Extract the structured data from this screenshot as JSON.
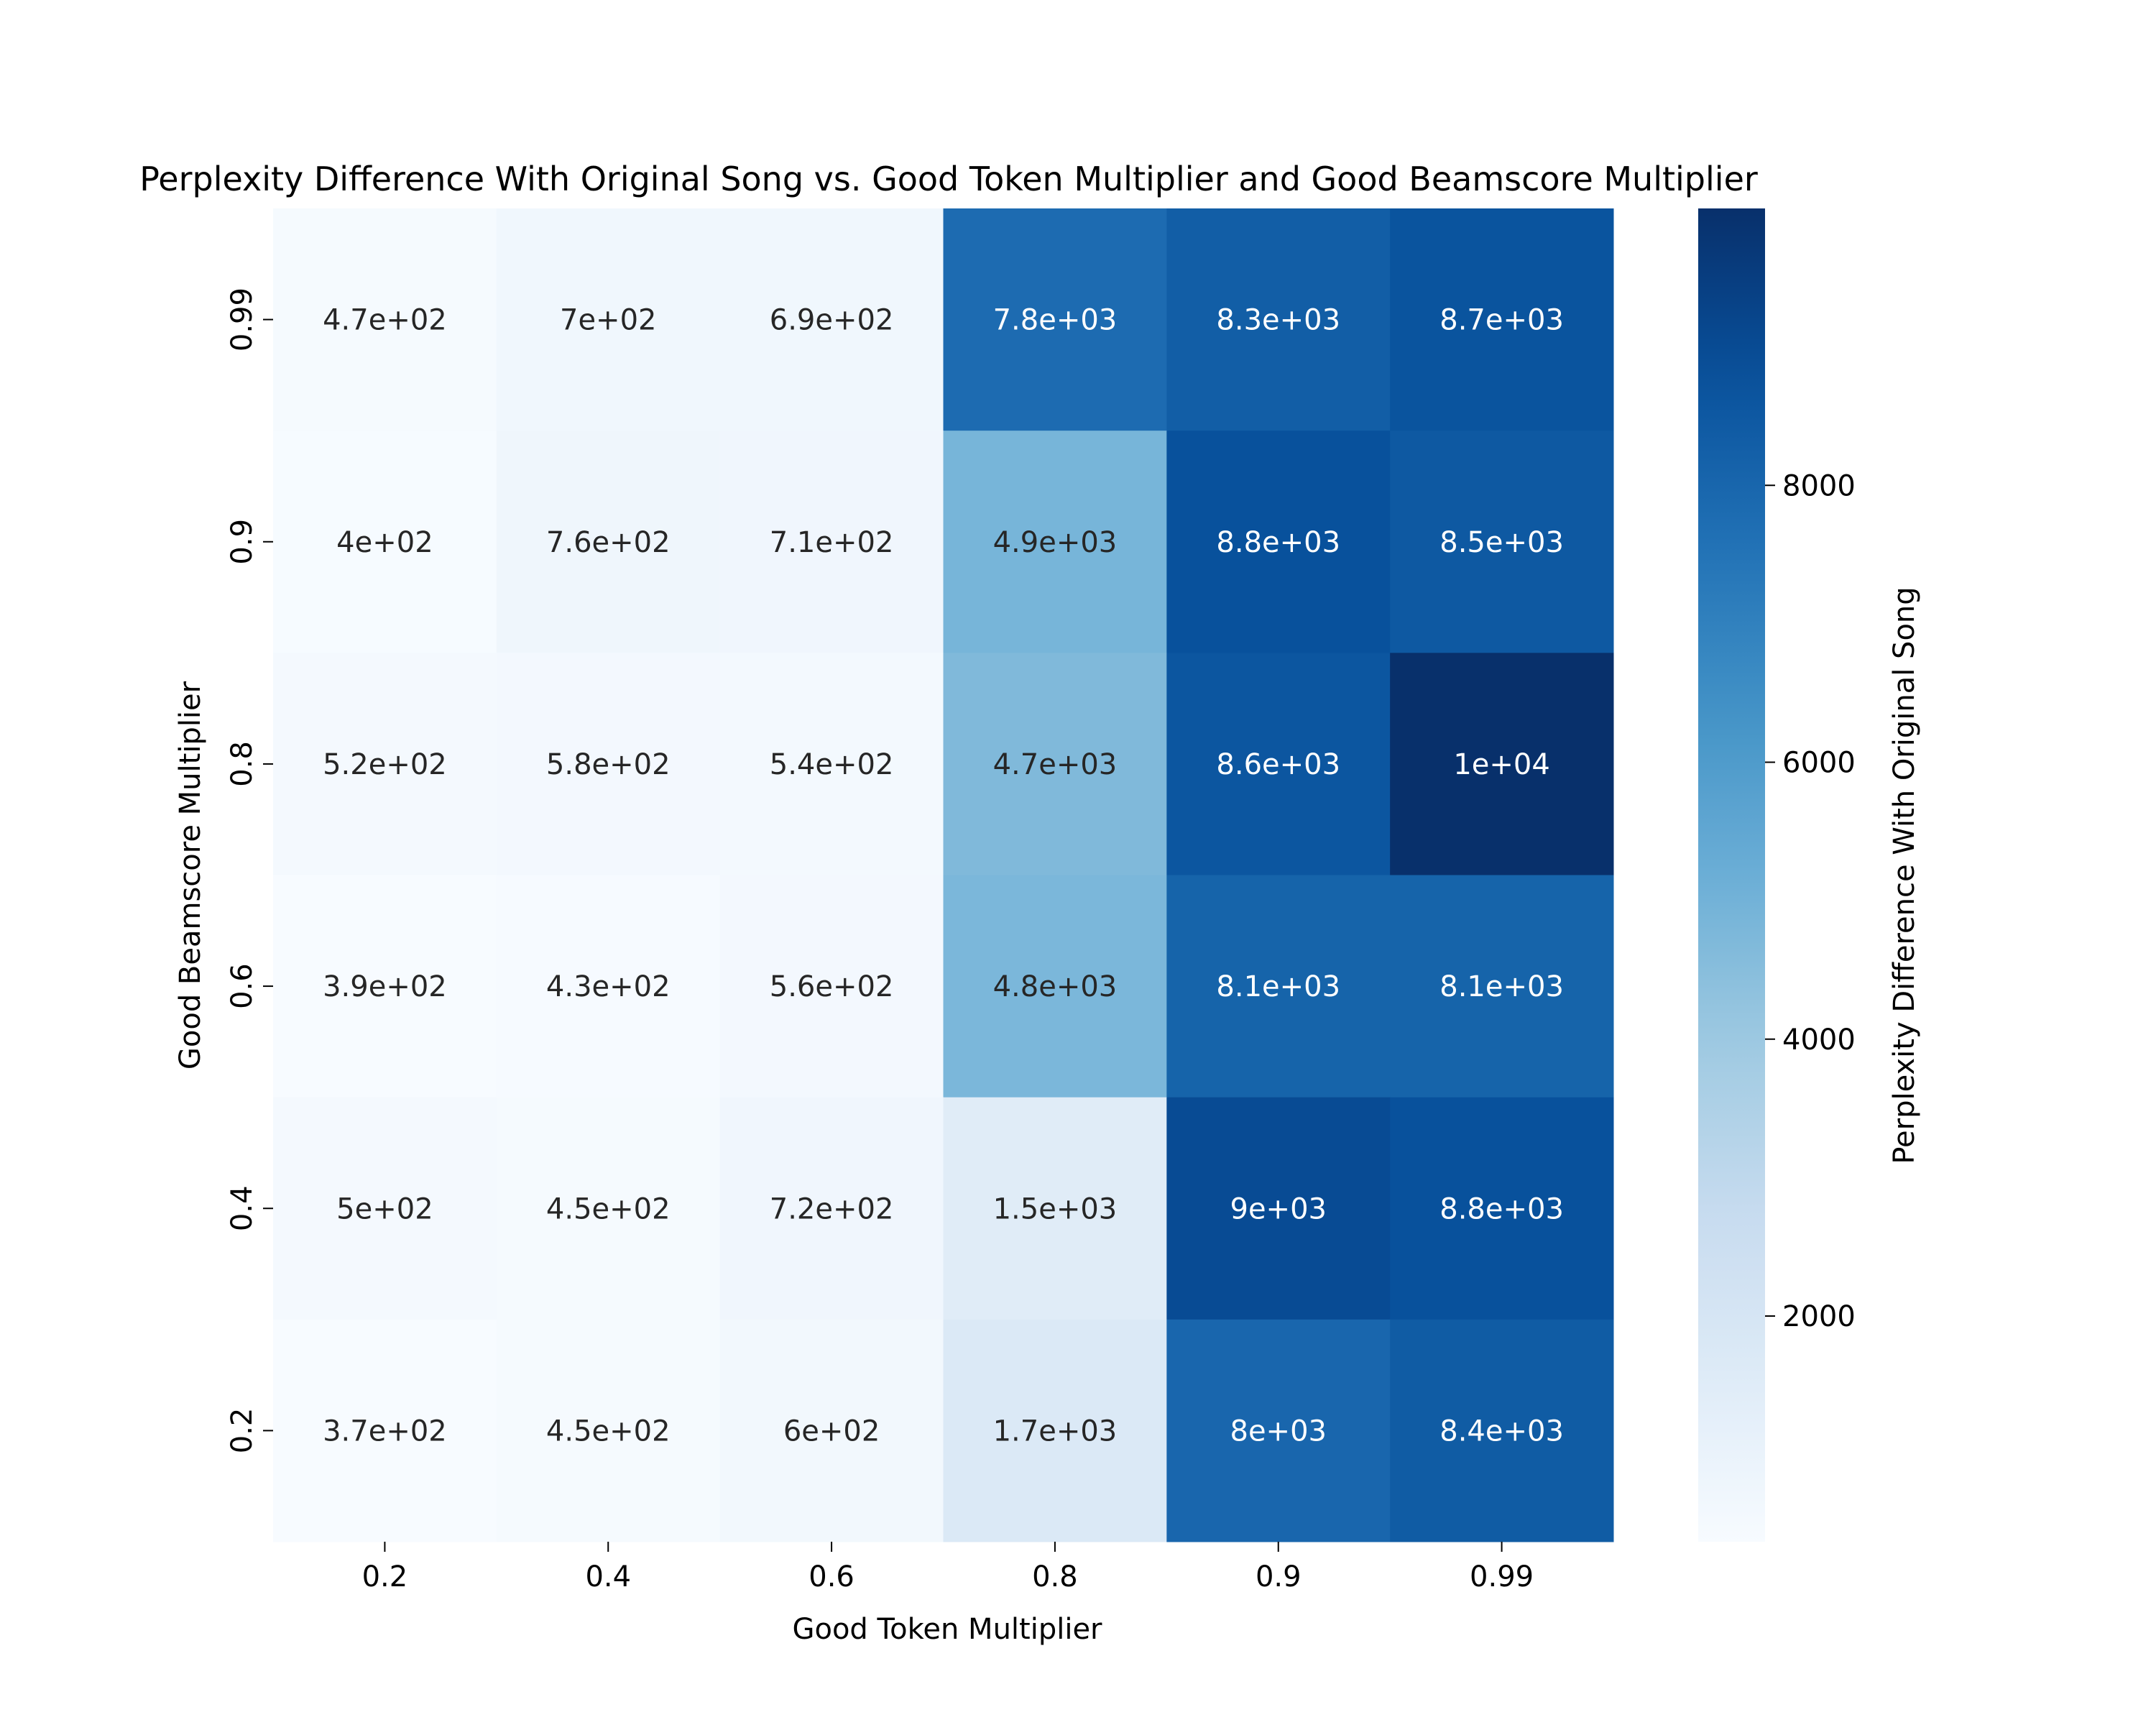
{
  "chart_data": {
    "type": "heatmap",
    "title": "Perplexity Difference With Original Song vs. Good Token Multiplier and Good Beamscore Multiplier",
    "xlabel": "Good Token Multiplier",
    "ylabel": "Good Beamscore Multiplier",
    "x_categories": [
      "0.2",
      "0.4",
      "0.6",
      "0.8",
      "0.9",
      "0.99"
    ],
    "y_categories": [
      "0.99",
      "0.9",
      "0.8",
      "0.6",
      "0.4",
      "0.2"
    ],
    "values": [
      [
        470,
        700,
        690,
        7800,
        8300,
        8700
      ],
      [
        400,
        760,
        710,
        4900,
        8800,
        8500
      ],
      [
        520,
        580,
        540,
        4700,
        8600,
        10000
      ],
      [
        390,
        430,
        560,
        4800,
        8100,
        8100
      ],
      [
        500,
        450,
        720,
        1500,
        9000,
        8800
      ],
      [
        370,
        450,
        600,
        1700,
        8000,
        8400
      ]
    ],
    "annotations": [
      [
        "4.7e+02",
        "7e+02",
        "6.9e+02",
        "7.8e+03",
        "8.3e+03",
        "8.7e+03"
      ],
      [
        "4e+02",
        "7.6e+02",
        "7.1e+02",
        "4.9e+03",
        "8.8e+03",
        "8.5e+03"
      ],
      [
        "5.2e+02",
        "5.8e+02",
        "5.4e+02",
        "4.7e+03",
        "8.6e+03",
        "1e+04"
      ],
      [
        "3.9e+02",
        "4.3e+02",
        "5.6e+02",
        "4.8e+03",
        "8.1e+03",
        "8.1e+03"
      ],
      [
        "5e+02",
        "4.5e+02",
        "7.2e+02",
        "1.5e+03",
        "9e+03",
        "8.8e+03"
      ],
      [
        "3.7e+02",
        "4.5e+02",
        "6e+02",
        "1.7e+03",
        "8e+03",
        "8.4e+03"
      ]
    ],
    "colorbar": {
      "label": "Perplexity Difference With Original Song",
      "colormap": "Blues",
      "range": [
        370,
        10000
      ],
      "ticks": [
        2000,
        4000,
        6000,
        8000
      ],
      "tick_labels": [
        "2000",
        "4000",
        "6000",
        "8000"
      ]
    },
    "grid": false
  }
}
